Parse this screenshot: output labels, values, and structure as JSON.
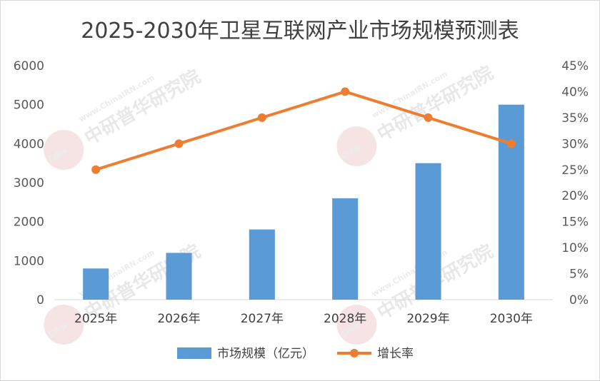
{
  "chart_data": {
    "type": "bar",
    "title": "2025-2030年卫星互联网产业市场规模预测表",
    "categories": [
      "2025年",
      "2026年",
      "2027年",
      "2028年",
      "2029年",
      "2030年"
    ],
    "series": [
      {
        "name": "市场规模（亿元）",
        "type": "bar",
        "axis": "left",
        "values": [
          800,
          1200,
          1800,
          2600,
          3500,
          5000
        ],
        "color": "#5b9bd5"
      },
      {
        "name": "增长率",
        "type": "line",
        "axis": "right",
        "values": [
          25,
          30,
          35,
          40,
          35,
          30
        ],
        "color": "#ed7d31"
      }
    ],
    "y_left": {
      "min": 0,
      "max": 6000,
      "step": 1000,
      "ticks": [
        "0",
        "1000",
        "2000",
        "3000",
        "4000",
        "5000",
        "6000"
      ]
    },
    "y_right": {
      "min": 0,
      "max": 45,
      "step": 5,
      "ticks": [
        "0%",
        "5%",
        "10%",
        "15%",
        "20%",
        "25%",
        "30%",
        "35%",
        "40%",
        "45%"
      ]
    },
    "legend_position": "bottom",
    "grid": false
  },
  "watermark": {
    "text_cn": "中研普华研究院",
    "text_en": "www.ChinaIRN.com",
    "logo": "CIRN"
  }
}
